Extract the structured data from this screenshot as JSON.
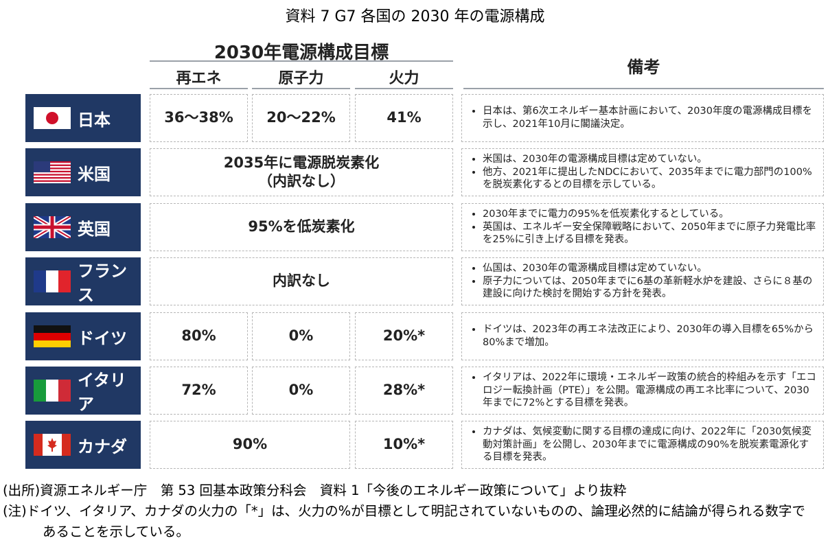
{
  "title": "資料 7 G7 各国の 2030 年の電源構成",
  "header": {
    "target": "2030年電源構成目標",
    "columns": [
      "再エネ",
      "原子力",
      "火力"
    ],
    "remarks": "備考"
  },
  "rows": [
    {
      "country": "日本",
      "cells": [
        {
          "text": "36～38%",
          "span": 1
        },
        {
          "text": "20～22%",
          "span": 1
        },
        {
          "text": "41%",
          "span": 1
        }
      ],
      "notes": [
        "日本は、第6次エネルギー基本計画において、2030年度の電源構成目標を示し、2021年10月に閣議決定。"
      ]
    },
    {
      "country": "米国",
      "cells": [
        {
          "text": "2035年に電源脱炭素化\n（内訳なし）",
          "span": 3
        }
      ],
      "notes": [
        "米国は、2030年の電源構成目標は定めていない。",
        "他方、2021年に提出したNDCにおいて、2035年までに電力部門の100%を脱炭素化するとの目標を示している。"
      ]
    },
    {
      "country": "英国",
      "cells": [
        {
          "text": "95%を低炭素化",
          "span": 3
        }
      ],
      "notes": [
        "2030年までに電力の95%を低炭素化するとしている。",
        "英国は、エネルギー安全保障戦略において、2050年までに原子力発電比率を25%に引き上げる目標を発表。"
      ]
    },
    {
      "country": "フランス",
      "cells": [
        {
          "text": "内訳なし",
          "span": 3
        }
      ],
      "notes": [
        "仏国は、2030年の電源構成目標は定めていない。",
        "原子力については、2050年までに6基の革新軽水炉を建設、さらに８基の建設に向けた検討を開始する方針を発表。"
      ]
    },
    {
      "country": "ドイツ",
      "cells": [
        {
          "text": "80%",
          "span": 1
        },
        {
          "text": "0%",
          "span": 1
        },
        {
          "text": "20%*",
          "span": 1
        }
      ],
      "notes": [
        "ドイツは、2023年の再エネ法改正により、2030年の導入目標を65%から80%まで増加。"
      ]
    },
    {
      "country": "イタリア",
      "cells": [
        {
          "text": "72%",
          "span": 1
        },
        {
          "text": "0%",
          "span": 1
        },
        {
          "text": "28%*",
          "span": 1
        }
      ],
      "notes": [
        "イタリアは、2022年に環境・エネルギー政策の統合的枠組みを示す「エコロジー転換計画（PTE）」を公開。電源構成の再エネ比率について、2030年までに72%とする目標を発表。"
      ]
    },
    {
      "country": "カナダ",
      "cells": [
        {
          "text": "90%",
          "span": 2
        },
        {
          "text": "10%*",
          "span": 1
        }
      ],
      "notes": [
        "カナダは、気候変動に関する目標の達成に向け、2022年に「2030気候変動対策計画」を公開し、2030年までに電源構成の90%を脱炭素電源化する目標を発表。"
      ]
    }
  ],
  "footnotes": [
    "(出所)資源エネルギー庁　第 53 回基本政策分科会　資料 1「今後のエネルギー政策について」より抜粋",
    "(注)ドイツ、イタリア、カナダの火力の「*」は、火力の%が目標として明記されていないものの、論理必然的に結論が得られる数字であることを示している。"
  ]
}
